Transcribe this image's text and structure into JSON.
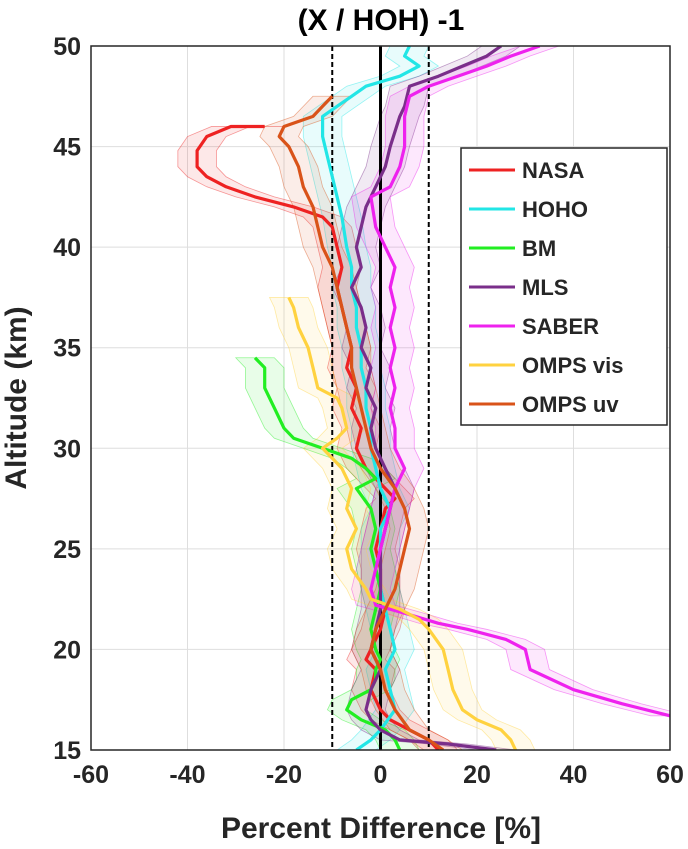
{
  "chart_data": {
    "type": "line",
    "title": "(X / HOH) -1",
    "xlabel": "Percent Difference [%]",
    "ylabel": "Altitude (km)",
    "xlim": [
      -60,
      60
    ],
    "ylim": [
      15,
      50
    ],
    "xticks": [
      "-60",
      "-40",
      "-20",
      "0",
      "20",
      "40",
      "60"
    ],
    "yticks": [
      "15",
      "20",
      "25",
      "30",
      "35",
      "40",
      "45",
      "50"
    ],
    "grid": true,
    "legend_position": "right",
    "reference_lines": [
      {
        "x": -10,
        "style": "dashed",
        "color": "#000000"
      },
      {
        "x": 0,
        "style": "solid",
        "color": "#000000"
      },
      {
        "x": 10,
        "style": "dashed",
        "color": "#000000"
      }
    ],
    "series": [
      {
        "name": "NASA",
        "color": "#ee2222",
        "points": [
          [
            -24,
            46
          ],
          [
            -31,
            46
          ],
          [
            -36,
            45.5
          ],
          [
            -38,
            44.8
          ],
          [
            -38,
            44
          ],
          [
            -36,
            43.5
          ],
          [
            -32,
            43
          ],
          [
            -26,
            42.5
          ],
          [
            -18,
            42
          ],
          [
            -12,
            41.5
          ],
          [
            -10,
            41
          ],
          [
            -9,
            40
          ],
          [
            -8,
            39
          ],
          [
            -9,
            38
          ],
          [
            -8,
            37
          ],
          [
            -7,
            36
          ],
          [
            -6,
            35
          ],
          [
            -7,
            34
          ],
          [
            -5,
            33
          ],
          [
            -6,
            32
          ],
          [
            -4,
            31
          ],
          [
            -5,
            30
          ],
          [
            -3,
            29
          ],
          [
            -1,
            28.5
          ],
          [
            1,
            28
          ],
          [
            3,
            27.5
          ],
          [
            1,
            27
          ],
          [
            0,
            26
          ],
          [
            -1,
            25
          ],
          [
            0,
            24
          ],
          [
            0,
            23
          ],
          [
            1,
            22
          ],
          [
            0,
            21
          ],
          [
            -2,
            20
          ],
          [
            -3,
            19.5
          ],
          [
            -1,
            19
          ],
          [
            -2,
            18
          ],
          [
            0,
            17
          ],
          [
            2,
            16.5
          ],
          [
            6,
            16
          ],
          [
            10,
            15.5
          ],
          [
            12,
            15
          ]
        ]
      },
      {
        "name": "HOHO",
        "color": "#22e6e6",
        "points": [
          [
            6,
            50
          ],
          [
            5,
            49.5
          ],
          [
            8,
            49
          ],
          [
            4,
            48.5
          ],
          [
            -3,
            48
          ],
          [
            -6,
            47.5
          ],
          [
            -9,
            47
          ],
          [
            -12,
            46.5
          ],
          [
            -12,
            45.5
          ],
          [
            -11,
            44.5
          ],
          [
            -10,
            43.5
          ],
          [
            -9,
            42.5
          ],
          [
            -8,
            41.5
          ],
          [
            -7,
            40
          ],
          [
            -6,
            39
          ],
          [
            -6,
            38
          ],
          [
            -5,
            37
          ],
          [
            -5,
            36
          ],
          [
            -4,
            35
          ],
          [
            -4,
            34
          ],
          [
            -3,
            33
          ],
          [
            -3,
            32
          ],
          [
            -2,
            31
          ],
          [
            -2,
            30
          ],
          [
            -1,
            29
          ],
          [
            0,
            28
          ],
          [
            2,
            27
          ],
          [
            0,
            26
          ],
          [
            0,
            25
          ],
          [
            -1,
            24
          ],
          [
            0,
            23
          ],
          [
            1,
            22
          ],
          [
            2,
            21
          ],
          [
            3,
            20
          ],
          [
            1,
            19
          ],
          [
            2,
            18
          ],
          [
            3,
            17
          ],
          [
            0,
            16
          ],
          [
            -2,
            15.5
          ],
          [
            -5,
            15
          ]
        ]
      },
      {
        "name": "BM",
        "color": "#22ee22",
        "points": [
          [
            -26,
            34.5
          ],
          [
            -24,
            34
          ],
          [
            -24,
            33
          ],
          [
            -22,
            32
          ],
          [
            -20,
            31
          ],
          [
            -18,
            30.5
          ],
          [
            -12,
            30
          ],
          [
            -6,
            29.5
          ],
          [
            -3,
            29
          ],
          [
            -1,
            28.5
          ],
          [
            -5,
            28
          ],
          [
            -2,
            27
          ],
          [
            -1,
            26
          ],
          [
            -2,
            25
          ],
          [
            -1,
            24
          ],
          [
            0,
            23
          ],
          [
            -1,
            22
          ],
          [
            -2,
            21
          ],
          [
            -1,
            20
          ],
          [
            0,
            19.5
          ],
          [
            -1,
            19
          ],
          [
            -1,
            18.5
          ],
          [
            -2,
            18
          ],
          [
            -6,
            17.5
          ],
          [
            -7,
            17
          ],
          [
            -4,
            16.5
          ],
          [
            1,
            16
          ],
          [
            3,
            15.5
          ],
          [
            4,
            15
          ]
        ]
      },
      {
        "name": "MLS",
        "color": "#7a2e8a",
        "points": [
          [
            25,
            50
          ],
          [
            22,
            49.5
          ],
          [
            17,
            49
          ],
          [
            12,
            48.5
          ],
          [
            6,
            48
          ],
          [
            5,
            47
          ],
          [
            4,
            46.5
          ],
          [
            2,
            45
          ],
          [
            1,
            44
          ],
          [
            -1,
            43
          ],
          [
            -3,
            42
          ],
          [
            -4,
            41
          ],
          [
            -5,
            40
          ],
          [
            -4,
            39
          ],
          [
            -6,
            38
          ],
          [
            -4,
            37
          ],
          [
            -3,
            36
          ],
          [
            -4,
            35
          ],
          [
            -2,
            34
          ],
          [
            -3,
            33
          ],
          [
            -1,
            32
          ],
          [
            -2,
            31
          ],
          [
            -1,
            30
          ],
          [
            1,
            29
          ],
          [
            3,
            28
          ],
          [
            2,
            27
          ],
          [
            1,
            26
          ],
          [
            0,
            25
          ],
          [
            0,
            24
          ],
          [
            0,
            23
          ],
          [
            0,
            22
          ],
          [
            -1,
            21
          ],
          [
            -2,
            20
          ],
          [
            0,
            19
          ],
          [
            -2,
            18
          ],
          [
            -3,
            17
          ],
          [
            -2,
            16.5
          ],
          [
            0,
            16
          ],
          [
            4,
            15.5
          ],
          [
            14,
            15.3
          ],
          [
            24,
            15
          ]
        ]
      },
      {
        "name": "SABER",
        "color": "#ee22ee",
        "points": [
          [
            33,
            50
          ],
          [
            27,
            49.5
          ],
          [
            22,
            49
          ],
          [
            16,
            48.5
          ],
          [
            10,
            48
          ],
          [
            6,
            47.5
          ],
          [
            5,
            46.5
          ],
          [
            5,
            45
          ],
          [
            4,
            44
          ],
          [
            2,
            43
          ],
          [
            -2,
            42.5
          ],
          [
            -1,
            41
          ],
          [
            1,
            40
          ],
          [
            3,
            39
          ],
          [
            2,
            38
          ],
          [
            3,
            37
          ],
          [
            2,
            36
          ],
          [
            3,
            35
          ],
          [
            2,
            34
          ],
          [
            3,
            33
          ],
          [
            2,
            32
          ],
          [
            3,
            31
          ],
          [
            3,
            30
          ],
          [
            5,
            29
          ],
          [
            3,
            28
          ],
          [
            2,
            27
          ],
          [
            1,
            26
          ],
          [
            0,
            25
          ],
          [
            -1,
            24
          ],
          [
            -2,
            23
          ],
          [
            -1,
            22.2
          ],
          [
            5,
            21.8
          ],
          [
            12,
            21.3
          ],
          [
            18,
            21
          ],
          [
            26,
            20.5
          ],
          [
            30,
            20
          ],
          [
            31,
            19
          ],
          [
            40,
            18
          ],
          [
            50,
            17.3
          ],
          [
            60,
            16.7
          ]
        ]
      },
      {
        "name": "OMPS vis",
        "color": "#ffd23f",
        "points": [
          [
            -19,
            37.5
          ],
          [
            -18,
            37
          ],
          [
            -17,
            36
          ],
          [
            -15,
            35
          ],
          [
            -14,
            34
          ],
          [
            -13,
            33
          ],
          [
            -9,
            32.5
          ],
          [
            -8,
            32
          ],
          [
            -7,
            31
          ],
          [
            -9,
            30.5
          ],
          [
            -12,
            30
          ],
          [
            -10,
            29.5
          ],
          [
            -8,
            29
          ],
          [
            -6,
            28
          ],
          [
            -7,
            27
          ],
          [
            -5,
            26
          ],
          [
            -7,
            25
          ],
          [
            -6,
            24
          ],
          [
            -3,
            23
          ],
          [
            -2,
            22.5
          ],
          [
            4,
            22
          ],
          [
            8,
            21.5
          ],
          [
            10,
            21
          ],
          [
            13,
            20
          ],
          [
            14,
            19
          ],
          [
            15,
            18
          ],
          [
            17,
            17
          ],
          [
            20,
            16.5
          ],
          [
            25,
            16
          ],
          [
            27,
            15.5
          ],
          [
            28,
            15
          ]
        ]
      },
      {
        "name": "OMPS uv",
        "color": "#d95319",
        "points": [
          [
            -10,
            47.5
          ],
          [
            -12,
            47
          ],
          [
            -14,
            46.5
          ],
          [
            -20,
            46
          ],
          [
            -21,
            45.5
          ],
          [
            -19,
            45
          ],
          [
            -17,
            44
          ],
          [
            -16,
            43
          ],
          [
            -14,
            42
          ],
          [
            -13,
            41
          ],
          [
            -12,
            40
          ],
          [
            -10,
            39
          ],
          [
            -9,
            38
          ],
          [
            -8,
            37
          ],
          [
            -7,
            36
          ],
          [
            -6,
            35
          ],
          [
            -6,
            34
          ],
          [
            -5,
            33
          ],
          [
            -4,
            32
          ],
          [
            -3,
            31
          ],
          [
            -2,
            30
          ],
          [
            0,
            29
          ],
          [
            3,
            28
          ],
          [
            5,
            27
          ],
          [
            6,
            26
          ],
          [
            5,
            25
          ],
          [
            4,
            24
          ],
          [
            3,
            23
          ],
          [
            1,
            22
          ],
          [
            -1,
            21
          ],
          [
            -2,
            20
          ],
          [
            0,
            19
          ],
          [
            1,
            18
          ],
          [
            3,
            17
          ],
          [
            6,
            16
          ],
          [
            10,
            15.5
          ],
          [
            13,
            15
          ]
        ]
      }
    ]
  }
}
